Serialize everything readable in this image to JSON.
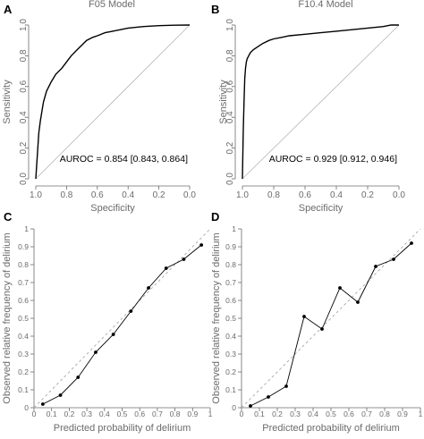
{
  "panels": {
    "A": {
      "letter": "A",
      "title": "F05 Model"
    },
    "B": {
      "letter": "B",
      "title": "F10.4 Model"
    },
    "C": {
      "letter": "C"
    },
    "D": {
      "letter": "D"
    }
  },
  "colors": {
    "line": "#000000",
    "axis": "#6b6b6b",
    "diagonal": "#b5b5b5",
    "dashed_diagonal": "#a8a8a8"
  },
  "chart_data": [
    {
      "panel": "A",
      "type": "line",
      "title": "F05 Model",
      "xlabel": "Specificity",
      "ylabel": "Sensitivity",
      "xlim": [
        1.0,
        0.0
      ],
      "ylim": [
        0.0,
        1.0
      ],
      "x_reversed": true,
      "xticks": [
        "1.0",
        "0.8",
        "0.6",
        "0.4",
        "0.2",
        "0.0"
      ],
      "yticks": [
        "0.0",
        "0.2",
        "0.4",
        "0.6",
        "0.8",
        "1.0"
      ],
      "annotation": "AUROC = 0.854 [0.843, 0.864]",
      "reference_line": "diagonal",
      "specificity": [
        1.0,
        0.99,
        0.98,
        0.97,
        0.96,
        0.95,
        0.93,
        0.9,
        0.87,
        0.83,
        0.8,
        0.77,
        0.73,
        0.7,
        0.67,
        0.63,
        0.6,
        0.55,
        0.5,
        0.45,
        0.4,
        0.35,
        0.3,
        0.25,
        0.2,
        0.1,
        0.0
      ],
      "sensitivity": [
        0.0,
        0.15,
        0.3,
        0.38,
        0.44,
        0.5,
        0.57,
        0.63,
        0.68,
        0.72,
        0.76,
        0.8,
        0.84,
        0.87,
        0.9,
        0.92,
        0.93,
        0.95,
        0.96,
        0.97,
        0.98,
        0.985,
        0.99,
        0.993,
        0.996,
        0.999,
        1.0
      ]
    },
    {
      "panel": "B",
      "type": "line",
      "title": "F10.4 Model",
      "xlabel": "Specificity",
      "ylabel": "Sensitivity",
      "xlim": [
        1.0,
        0.0
      ],
      "ylim": [
        0.0,
        1.0
      ],
      "x_reversed": true,
      "xticks": [
        "1.0",
        "0.8",
        "0.6",
        "0.4",
        "0.2",
        "0.0"
      ],
      "yticks": [
        "0.0",
        "0.2",
        "0.4",
        "0.6",
        "0.8",
        "1.0"
      ],
      "annotation": "AUROC = 0.929 [0.912, 0.946]",
      "reference_line": "diagonal",
      "specificity": [
        1.0,
        0.995,
        0.99,
        0.985,
        0.98,
        0.975,
        0.97,
        0.96,
        0.95,
        0.93,
        0.9,
        0.87,
        0.83,
        0.8,
        0.75,
        0.7,
        0.6,
        0.5,
        0.4,
        0.3,
        0.2,
        0.1,
        0.05,
        0.0
      ],
      "sensitivity": [
        0.0,
        0.3,
        0.5,
        0.65,
        0.72,
        0.76,
        0.78,
        0.8,
        0.82,
        0.84,
        0.86,
        0.88,
        0.9,
        0.91,
        0.92,
        0.93,
        0.94,
        0.95,
        0.96,
        0.97,
        0.98,
        0.99,
        1.0,
        1.0
      ]
    },
    {
      "panel": "C",
      "type": "line",
      "xlabel": "Predicted probability of delirium",
      "ylabel": "Observed relative frequency of delirium",
      "xlim": [
        0.0,
        1.0
      ],
      "ylim": [
        0.0,
        1.0
      ],
      "xticks": [
        "0",
        "0.1",
        "0.2",
        "0.3",
        "0.4",
        "0.5",
        "0.6",
        "0.7",
        "0.8",
        "0.9",
        "1"
      ],
      "yticks": [
        "0",
        "0.1",
        "0.2",
        "0.3",
        "0.4",
        "0.5",
        "0.6",
        "0.7",
        "0.8",
        "0.9",
        "1"
      ],
      "reference_line": "dashed-diagonal",
      "x": [
        0.05,
        0.15,
        0.25,
        0.35,
        0.45,
        0.55,
        0.65,
        0.75,
        0.85,
        0.95
      ],
      "y": [
        0.02,
        0.07,
        0.17,
        0.31,
        0.41,
        0.54,
        0.67,
        0.78,
        0.83,
        0.91
      ]
    },
    {
      "panel": "D",
      "type": "line",
      "xlabel": "Predicted probability of delirium",
      "ylabel": "Observed relative frequency of delirium",
      "xlim": [
        0.0,
        1.0
      ],
      "ylim": [
        0.0,
        1.0
      ],
      "xticks": [
        "0",
        "0.1",
        "0.2",
        "0.3",
        "0.4",
        "0.5",
        "0.6",
        "0.7",
        "0.8",
        "0.9",
        "1"
      ],
      "yticks": [
        "0",
        "0.1",
        "0.2",
        "0.3",
        "0.4",
        "0.5",
        "0.6",
        "0.7",
        "0.8",
        "0.9",
        "1"
      ],
      "reference_line": "dashed-diagonal",
      "x": [
        0.05,
        0.15,
        0.25,
        0.35,
        0.45,
        0.55,
        0.65,
        0.75,
        0.85,
        0.95
      ],
      "y": [
        0.01,
        0.06,
        0.12,
        0.51,
        0.44,
        0.67,
        0.59,
        0.79,
        0.83,
        0.92
      ]
    }
  ]
}
